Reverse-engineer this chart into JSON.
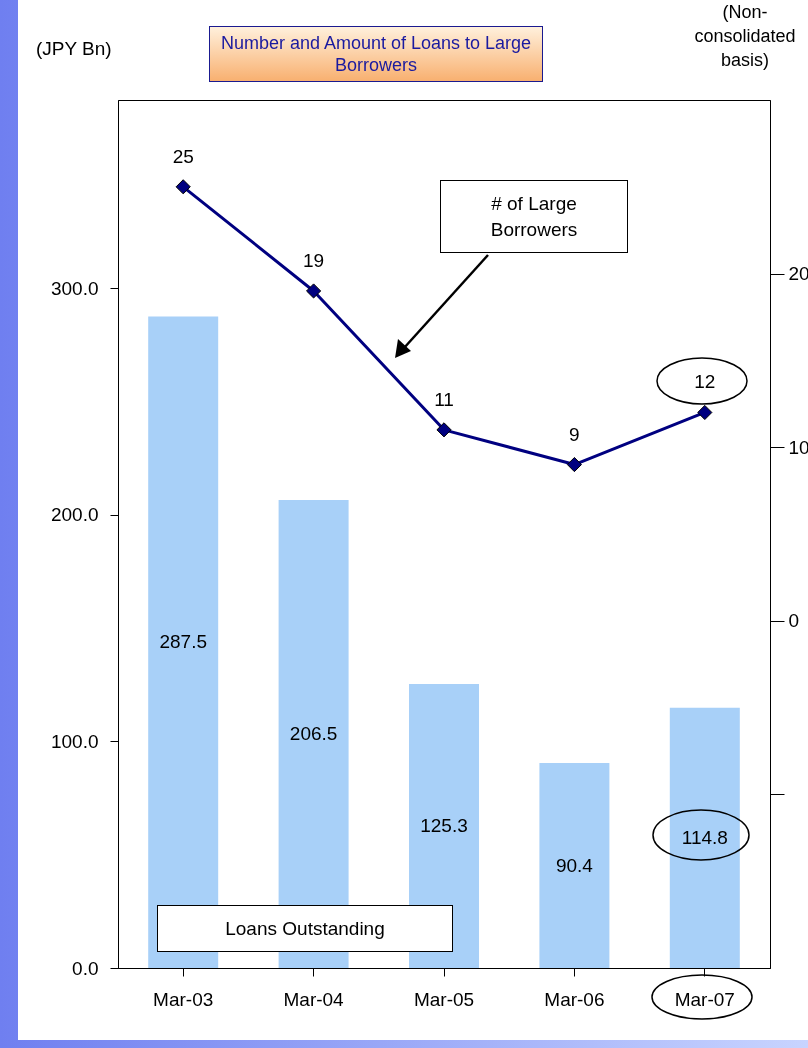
{
  "chart_data": {
    "type": "bar",
    "title": "Number and Amount of Loans to Large Borrowers",
    "annotations": [
      "(JPY Bn)",
      "(Non-consolidated basis)",
      "# of Large Borrowers",
      "Loans Outstanding"
    ],
    "categories": [
      "Mar-03",
      "Mar-04",
      "Mar-05",
      "Mar-06",
      "Mar-07"
    ],
    "series": [
      {
        "color": "#a8d0f8",
        "values": [
          287.5,
          206.5,
          125.3,
          90.4,
          114.8
        ]
      },
      {
        "type": "line",
        "axis": "y2",
        "color": "#000080",
        "values": [
          25,
          19,
          11,
          9,
          12
        ]
      }
    ],
    "ylim": [
      0,
      383
    ],
    "yticks": [
      {
        "value": 0,
        "label": "0.0"
      },
      {
        "value": 100,
        "label": "100.0"
      },
      {
        "value": 200,
        "label": "200.0"
      },
      {
        "value": 300,
        "label": "300.0"
      }
    ],
    "y2lim": [
      -20,
      30
    ],
    "y2ticks": [
      {
        "value": -10,
        "label": null
      },
      0,
      10,
      20
    ],
    "data_labels": true,
    "marker": "diamond",
    "line_style": "solid",
    "grid": false
  }
}
